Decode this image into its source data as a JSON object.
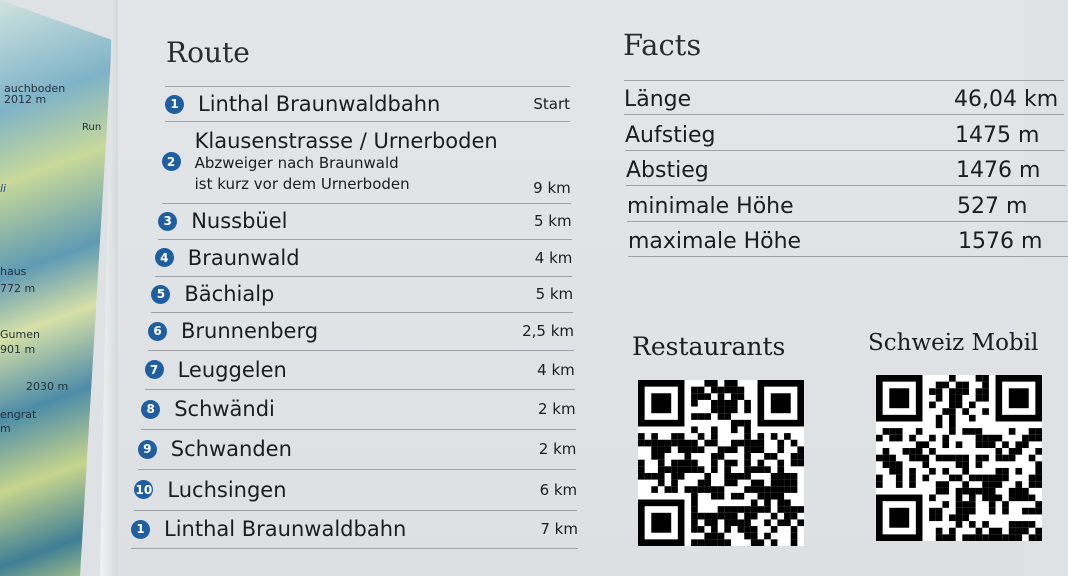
{
  "map": {
    "labels": [
      "auchboden",
      "2012 m",
      "Run",
      "li",
      "haus",
      "772 m",
      "Gumen",
      "901 m",
      "2030 m",
      "engrat",
      "m"
    ]
  },
  "route": {
    "title": "Route",
    "items": [
      {
        "num": "1",
        "name": "Linthal Braunwaldbahn",
        "distance": "Start"
      },
      {
        "num": "2",
        "name": "Klausenstrasse / Urnerboden",
        "note_1": "Abzweiger nach Braunwald",
        "note_2": "ist kurz vor dem Urnerboden",
        "distance": "9 km"
      },
      {
        "num": "3",
        "name": "Nussbüel",
        "distance": "5 km"
      },
      {
        "num": "4",
        "name": "Braunwald",
        "distance": "4 km"
      },
      {
        "num": "5",
        "name": "Bächialp",
        "distance": "5 km"
      },
      {
        "num": "6",
        "name": "Brunnenberg",
        "distance": "2,5 km"
      },
      {
        "num": "7",
        "name": "Leuggelen",
        "distance": "4 km"
      },
      {
        "num": "8",
        "name": "Schwändi",
        "distance": "2 km"
      },
      {
        "num": "9",
        "name": "Schwanden",
        "distance": "2 km"
      },
      {
        "num": "10",
        "name": "Luchsingen",
        "distance": "6 km"
      },
      {
        "num": "1",
        "name": "Linthal Braunwaldbahn",
        "distance": "7 km"
      }
    ],
    "badge_color": "#1f5fa0"
  },
  "facts": {
    "title": "Facts",
    "items": [
      {
        "label": "Länge",
        "value": "46,04 km"
      },
      {
        "label": "Aufstieg",
        "value": "1475 m"
      },
      {
        "label": "Abstieg",
        "value": "1476 m"
      },
      {
        "label": "minimale Höhe",
        "value": "527 m"
      },
      {
        "label": "maximale Höhe",
        "value": "1576 m"
      }
    ]
  },
  "qr": [
    {
      "label": "Restaurants"
    },
    {
      "label": "Schweiz Mobil"
    }
  ]
}
